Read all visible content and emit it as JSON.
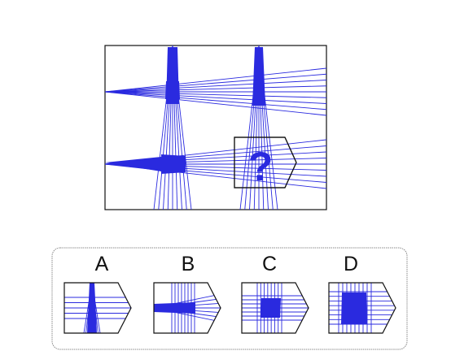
{
  "puzzle": {
    "question_mark": "?",
    "line_color": "#2a2adf",
    "fill_color": "#2a2adf",
    "border_color": "#111111"
  },
  "options": [
    {
      "label": "A",
      "variant": "vertical-fan"
    },
    {
      "label": "B",
      "variant": "horizontal-fan"
    },
    {
      "label": "C",
      "variant": "small-square"
    },
    {
      "label": "D",
      "variant": "large-square"
    }
  ]
}
